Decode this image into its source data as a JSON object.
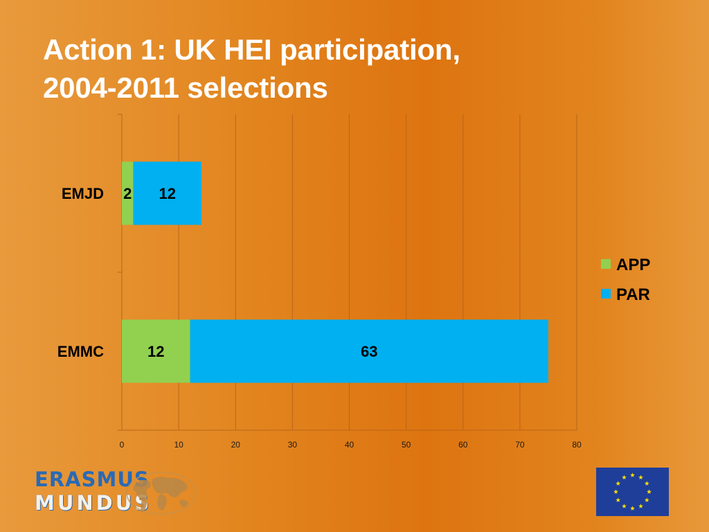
{
  "title": {
    "line1": "Action 1: UK HEI participation,",
    "line2": "2004-2011 selections"
  },
  "chart_data": {
    "type": "bar",
    "orientation": "horizontal",
    "stacked": true,
    "title": "Action 1: UK HEI participation, 2004-2011 selections",
    "categories": [
      "EMJD",
      "EMMC"
    ],
    "series": [
      {
        "name": "APP",
        "color": "#92d050",
        "values": [
          2,
          12
        ]
      },
      {
        "name": "PAR",
        "color": "#00b0f0",
        "values": [
          12,
          63
        ]
      }
    ],
    "xlim": [
      0,
      80
    ],
    "xticks": [
      0,
      10,
      20,
      30,
      40,
      50,
      60,
      70,
      80
    ],
    "grid": true,
    "legend": "right",
    "data_labels": true
  },
  "logo": {
    "line1": "ERASMUS",
    "line2": "MUNDUS"
  },
  "colors": {
    "title_text": "#ffffff",
    "gridline": "#b8651a",
    "eu_flag_blue": "#1e3e9a",
    "eu_star": "#ffdd00"
  },
  "icons": [
    "globe-map-icon",
    "eu-flag-icon"
  ]
}
